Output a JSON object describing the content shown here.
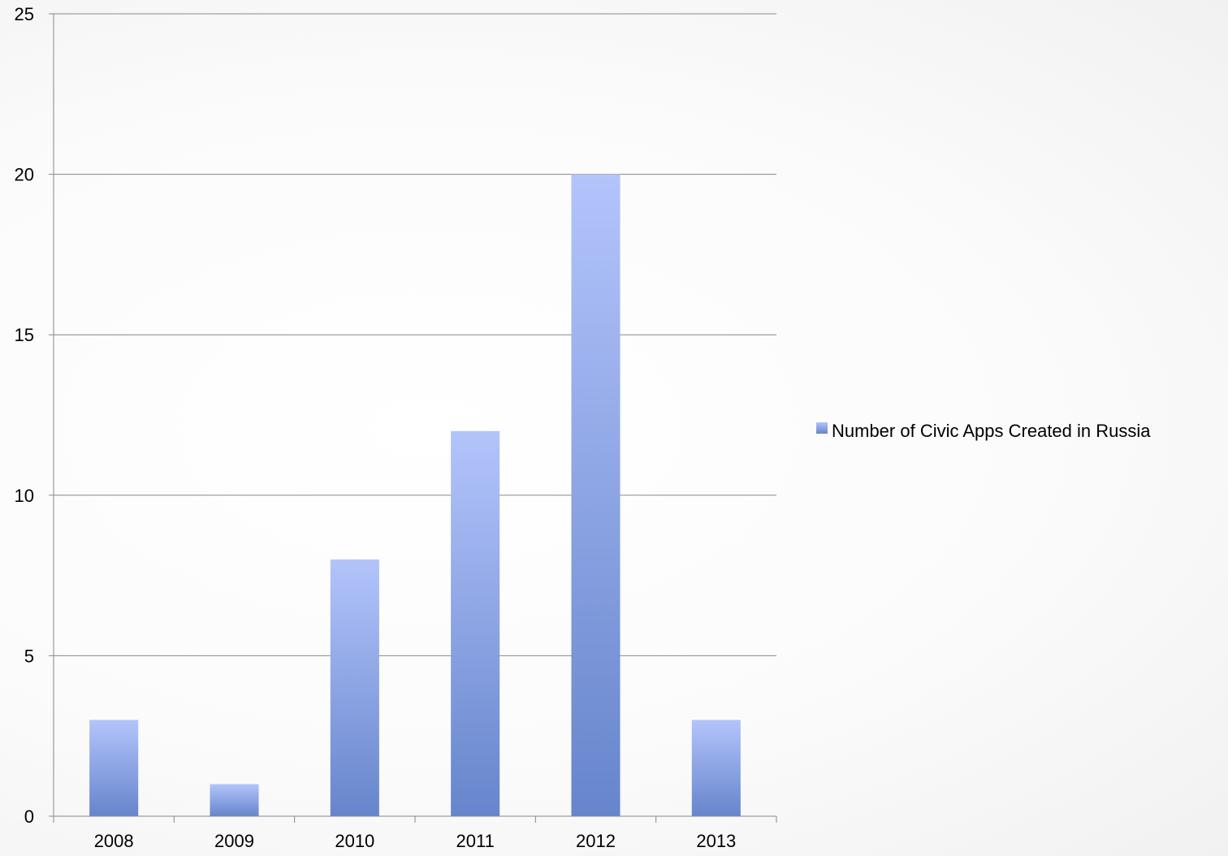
{
  "chart_data": {
    "type": "bar",
    "categories": [
      "2008",
      "2009",
      "2010",
      "2011",
      "2012",
      "2013"
    ],
    "series": [
      {
        "name": "Number of Civic Apps Created in Russia",
        "values": [
          3,
          1,
          8,
          12,
          20,
          3
        ]
      }
    ],
    "title": "",
    "xlabel": "",
    "ylabel": "",
    "ylim": [
      0,
      25
    ],
    "yticks": [
      0,
      5,
      10,
      15,
      20,
      25
    ],
    "grid": true,
    "legend_position": "right",
    "colors": {
      "bar_top": "#b3c4fb",
      "bar_bottom": "#6685cc",
      "gridline": "#888888",
      "axis": "#888888"
    }
  }
}
